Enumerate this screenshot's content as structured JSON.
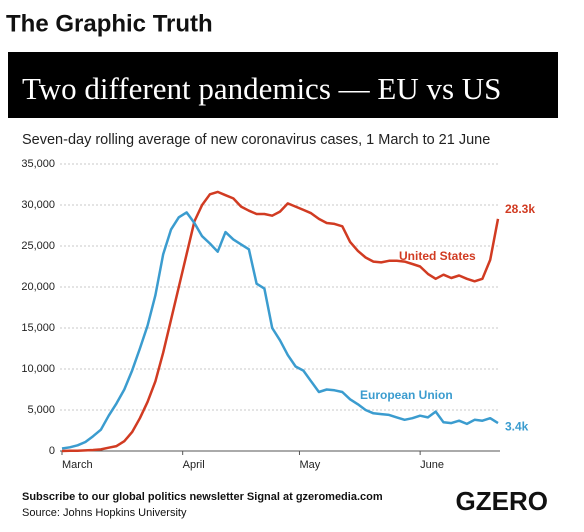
{
  "header": {
    "brand": "The Graphic Truth"
  },
  "chart_data": {
    "type": "line",
    "title": "Two different pandemics — EU vs US",
    "subtitle": "Seven-day rolling average of new coronavirus cases, 1 March to 21 June",
    "x": [
      0,
      2,
      4,
      6,
      8,
      10,
      12,
      14,
      16,
      18,
      20,
      22,
      24,
      26,
      28,
      30,
      32,
      34,
      36,
      38,
      40,
      42,
      44,
      46,
      48,
      50,
      52,
      54,
      56,
      58,
      60,
      62,
      64,
      66,
      68,
      70,
      72,
      74,
      76,
      78,
      80,
      82,
      84,
      86,
      88,
      90,
      92,
      94,
      96,
      98,
      100,
      102,
      104,
      106,
      108,
      110,
      112
    ],
    "xlim": [
      0,
      112
    ],
    "xticks": [
      {
        "value": 0,
        "label": "March"
      },
      {
        "value": 31,
        "label": "April"
      },
      {
        "value": 61,
        "label": "May"
      },
      {
        "value": 92,
        "label": "June"
      }
    ],
    "ylim": [
      0,
      35000
    ],
    "yticks": [
      0,
      {
        "value": 5000,
        "label": "5,000"
      },
      {
        "value": 10000,
        "label": "10,000"
      },
      {
        "value": 15000,
        "label": "15,000"
      },
      {
        "value": 20000,
        "label": "20,000"
      },
      {
        "value": 25000,
        "label": "25,000"
      },
      {
        "value": 30000,
        "label": "30,000"
      },
      {
        "value": 35000,
        "label": "35,000"
      }
    ],
    "grid": true,
    "series": [
      {
        "name": "United States",
        "color": "#d13b22",
        "end_label": "28.3k",
        "values": [
          0,
          20,
          40,
          70,
          120,
          200,
          400,
          600,
          1200,
          2300,
          4000,
          6000,
          8500,
          12000,
          16000,
          20000,
          24000,
          28000,
          30000,
          31300,
          31600,
          31200,
          30800,
          29800,
          29300,
          28900,
          28900,
          28700,
          29200,
          30200,
          29800,
          29400,
          29000,
          28300,
          27800,
          27700,
          27400,
          25500,
          24400,
          23600,
          23100,
          23000,
          23200,
          23200,
          23100,
          22800,
          22500,
          21600,
          21000,
          21500,
          21100,
          21400,
          21000,
          20700,
          21000,
          23300,
          28300
        ]
      },
      {
        "name": "European Union",
        "color": "#3b9ccf",
        "end_label": "3.4k",
        "values": [
          300,
          450,
          700,
          1100,
          1800,
          2600,
          4300,
          5800,
          7500,
          9800,
          12500,
          15300,
          19000,
          24000,
          27000,
          28500,
          29100,
          27800,
          26200,
          25300,
          24300,
          26700,
          25800,
          25200,
          24600,
          20400,
          19800,
          15000,
          13500,
          11700,
          10300,
          9800,
          8500,
          7200,
          7500,
          7400,
          7200,
          6300,
          5700,
          5000,
          4600,
          4500,
          4400,
          4100,
          3800,
          4000,
          4300,
          4100,
          4800,
          3500,
          3400,
          3700,
          3300,
          3800,
          3700,
          4000,
          3400
        ]
      }
    ]
  },
  "footer": {
    "note": "Subscribe to our global politics newsletter Signal at gzeromedia.com",
    "source": "Source: Johns Hopkins University",
    "logo": "GZERO"
  }
}
